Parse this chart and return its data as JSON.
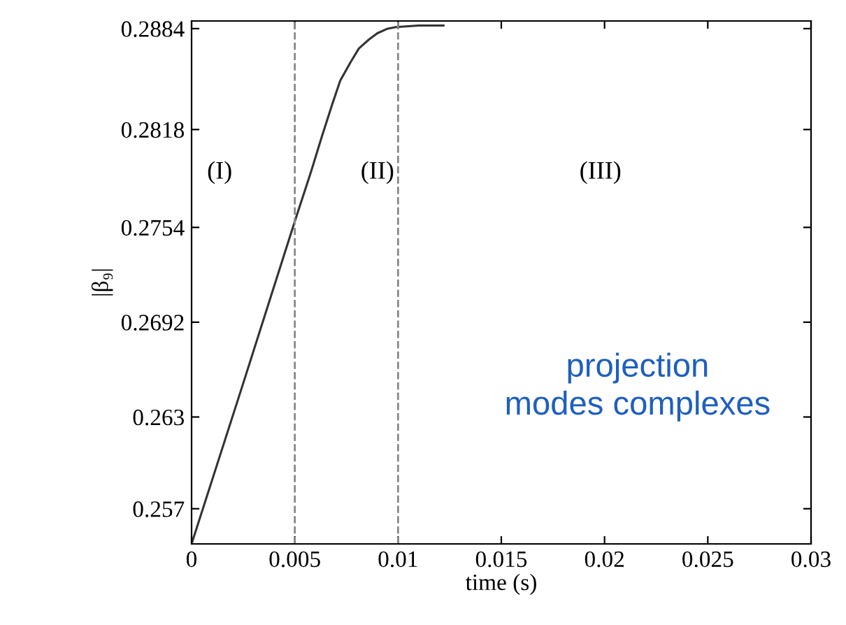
{
  "chart_data": {
    "type": "line",
    "xlabel": "time (s)",
    "ylabel": "|β₉|",
    "x": [
      0,
      0.0025,
      0.005,
      0.0058,
      0.0063,
      0.0068,
      0.0072,
      0.0077,
      0.0081,
      0.0086,
      0.009,
      0.0095,
      0.0099,
      0.011,
      0.0122
    ],
    "series": [
      {
        "color": "#333333",
        "values": [
          0.2547,
          0.2652,
          0.2758,
          0.2791,
          0.2813,
          0.2834,
          0.285,
          0.2862,
          0.2871,
          0.2877,
          0.2881,
          0.2884,
          0.2885,
          0.2886,
          0.2886
        ]
      }
    ],
    "xlim": [
      0,
      0.03
    ],
    "xticks": [
      0,
      0.005,
      0.01,
      0.015,
      0.02,
      0.025,
      0.03
    ],
    "ylim": [
      0.2547,
      0.2889
    ],
    "yticks": [
      0.2884,
      0.2818,
      0.2754,
      0.2692,
      0.263,
      0.257
    ],
    "ref_lines": [
      {
        "axis": "x",
        "value": 0.005,
        "color": "#888888",
        "line_style": "dashed"
      },
      {
        "axis": "x",
        "value": 0.01,
        "color": "#888888",
        "line_style": "dashed"
      }
    ],
    "annotations": [
      "(I)",
      "(II)",
      "(III)",
      "projection\nmodes complexes"
    ],
    "grid": false,
    "legend": false,
    "marker": "none",
    "line_style": "solid"
  }
}
